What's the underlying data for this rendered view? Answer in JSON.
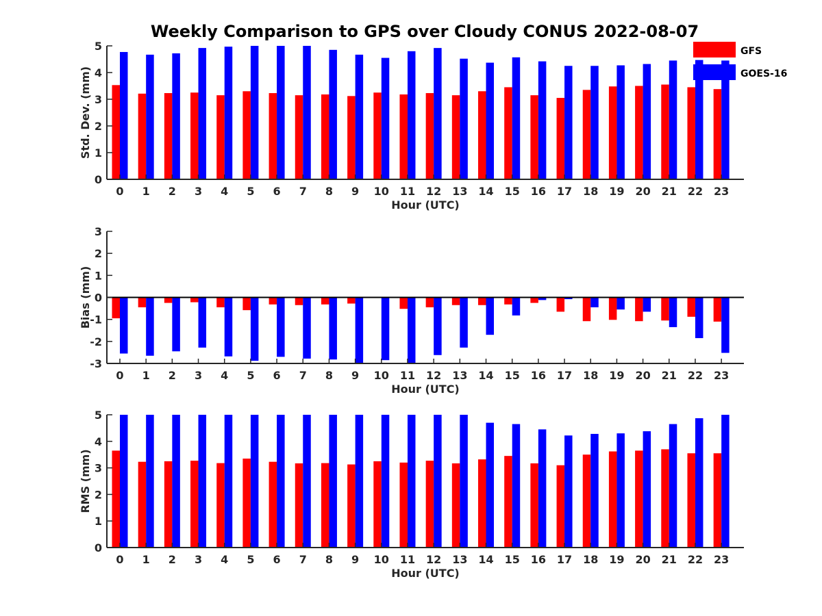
{
  "title": "Weekly Comparison to GPS over Cloudy CONUS 2022-08-07",
  "colors": {
    "GFS": "#ff0000",
    "GOES-16": "#0000ff"
  },
  "legend": {
    "placement": "top-right",
    "entries": [
      "GFS",
      "GOES-16"
    ]
  },
  "chart_data": [
    {
      "type": "bar",
      "ylabel": "Std. Dev. (mm)",
      "xlabel": "Hour (UTC)",
      "ylim": [
        0,
        5
      ],
      "yticks": [
        0,
        1,
        2,
        3,
        4,
        5
      ],
      "categories": [
        "0",
        "1",
        "2",
        "3",
        "4",
        "5",
        "6",
        "7",
        "8",
        "9",
        "10",
        "11",
        "12",
        "13",
        "14",
        "15",
        "16",
        "17",
        "18",
        "19",
        "20",
        "21",
        "22",
        "23"
      ],
      "series": [
        {
          "name": "GFS",
          "values": [
            3.53,
            3.21,
            3.23,
            3.25,
            3.15,
            3.3,
            3.23,
            3.15,
            3.18,
            3.12,
            3.25,
            3.18,
            3.23,
            3.15,
            3.3,
            3.45,
            3.15,
            3.05,
            3.35,
            3.48,
            3.5,
            3.55,
            3.45,
            3.38
          ]
        },
        {
          "name": "GOES-16",
          "values": [
            4.77,
            4.67,
            4.72,
            4.92,
            4.97,
            5.0,
            5.0,
            5.0,
            4.85,
            4.67,
            4.55,
            4.8,
            4.92,
            4.52,
            4.37,
            4.57,
            4.42,
            4.25,
            4.25,
            4.27,
            4.32,
            4.45,
            4.47,
            4.45
          ]
        }
      ]
    },
    {
      "type": "bar",
      "ylabel": "Bias (mm)",
      "xlabel": "Hour (UTC)",
      "ylim": [
        -3,
        3
      ],
      "yticks": [
        -3,
        -2,
        -1,
        0,
        1,
        2,
        3
      ],
      "zero_line": true,
      "categories": [
        "0",
        "1",
        "2",
        "3",
        "4",
        "5",
        "6",
        "7",
        "8",
        "9",
        "10",
        "11",
        "12",
        "13",
        "14",
        "15",
        "16",
        "17",
        "18",
        "19",
        "20",
        "21",
        "22",
        "23"
      ],
      "series": [
        {
          "name": "GFS",
          "values": [
            -0.95,
            -0.45,
            -0.25,
            -0.22,
            -0.45,
            -0.58,
            -0.32,
            -0.35,
            -0.32,
            -0.28,
            0.02,
            -0.52,
            -0.45,
            -0.35,
            -0.35,
            -0.32,
            -0.25,
            -0.65,
            -1.08,
            -1.02,
            -1.08,
            -1.05,
            -0.88,
            -1.1
          ]
        },
        {
          "name": "GOES-16",
          "values": [
            -2.55,
            -2.65,
            -2.45,
            -2.28,
            -2.68,
            -2.88,
            -2.7,
            -2.78,
            -2.82,
            -3.0,
            -2.85,
            -3.0,
            -2.62,
            -2.28,
            -1.7,
            -0.82,
            -0.12,
            -0.08,
            -0.45,
            -0.55,
            -0.65,
            -1.35,
            -1.85,
            -2.52
          ]
        }
      ]
    },
    {
      "type": "bar",
      "ylabel": "RMS (mm)",
      "xlabel": "Hour (UTC)",
      "ylim": [
        0,
        5
      ],
      "yticks": [
        0,
        1,
        2,
        3,
        4,
        5
      ],
      "categories": [
        "0",
        "1",
        "2",
        "3",
        "4",
        "5",
        "6",
        "7",
        "8",
        "9",
        "10",
        "11",
        "12",
        "13",
        "14",
        "15",
        "16",
        "17",
        "18",
        "19",
        "20",
        "21",
        "22",
        "23"
      ],
      "series": [
        {
          "name": "GFS",
          "values": [
            3.65,
            3.23,
            3.25,
            3.27,
            3.18,
            3.35,
            3.23,
            3.17,
            3.18,
            3.13,
            3.25,
            3.2,
            3.27,
            3.17,
            3.32,
            3.45,
            3.17,
            3.1,
            3.5,
            3.62,
            3.65,
            3.7,
            3.55,
            3.55
          ]
        },
        {
          "name": "GOES-16",
          "values": [
            5.0,
            5.0,
            5.0,
            5.0,
            5.0,
            5.0,
            5.0,
            5.0,
            5.0,
            5.0,
            5.0,
            5.0,
            5.0,
            5.0,
            4.7,
            4.65,
            4.45,
            4.22,
            4.28,
            4.3,
            4.38,
            4.65,
            4.87,
            5.0
          ]
        }
      ]
    }
  ]
}
